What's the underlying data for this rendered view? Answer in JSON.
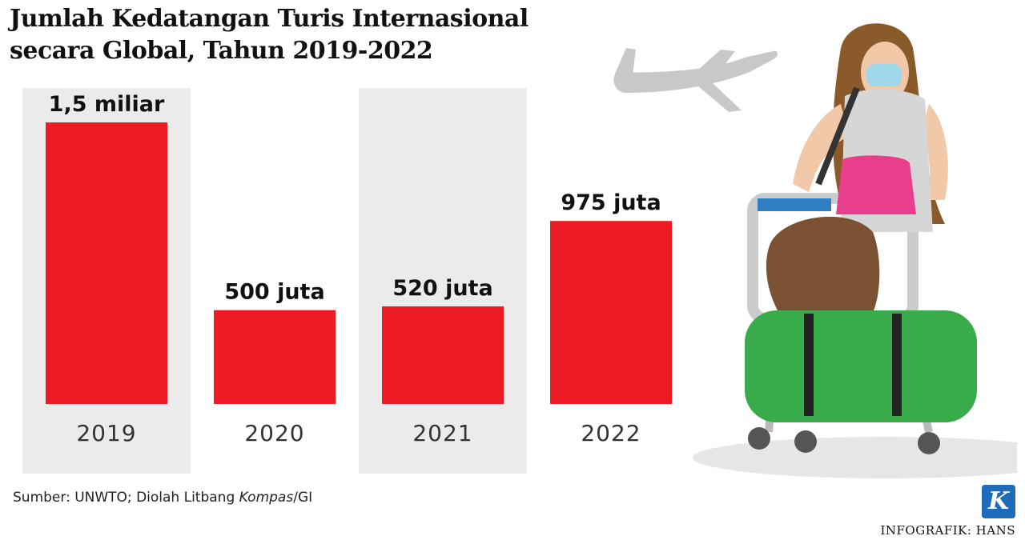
{
  "header": {
    "title_line1": "Jumlah Kedatangan Turis Internasional",
    "title_line2": "secara Global, Tahun 2019-2022"
  },
  "chart_data": {
    "type": "bar",
    "title": "Jumlah Kedatangan Turis Internasional secara Global, Tahun 2019-2022",
    "categories": [
      "2019",
      "2020",
      "2021",
      "2022"
    ],
    "values": [
      1500,
      500,
      520,
      975
    ],
    "unit": "juta",
    "value_labels": [
      "1,5 miliar",
      "500 juta",
      "520 juta",
      "975 juta"
    ],
    "bar_color": "#ed1c24",
    "band_color": "#ebebec",
    "ylim": [
      0,
      1500
    ],
    "grid": false,
    "legend": "none"
  },
  "footer": {
    "source_prefix": "Sumber: UNWTO; Diolah Litbang ",
    "source_italic": "Kompas",
    "source_suffix": "/GI",
    "credit": "INFOGRAFIK: HANS",
    "logo_letter": "K",
    "logo_color": "#1e6bb8"
  },
  "illustration": {
    "airplane_icon": "airplane-icon",
    "traveler": "traveler-with-luggage-cart-illustration"
  }
}
